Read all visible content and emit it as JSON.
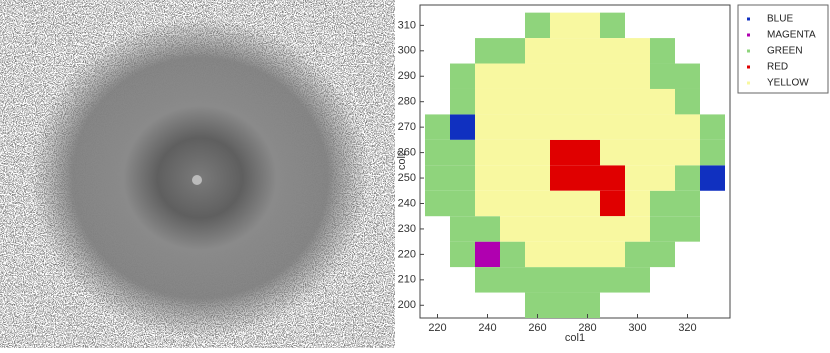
{
  "chart_data": {
    "type": "scatter",
    "xlabel": "col1",
    "ylabel": "col2",
    "xlim": [
      213,
      337
    ],
    "ylim": [
      195,
      318
    ],
    "xticks": [
      220,
      240,
      260,
      280,
      300,
      320
    ],
    "yticks": [
      200,
      210,
      220,
      230,
      240,
      250,
      260,
      270,
      280,
      290,
      300,
      310
    ],
    "series": [
      {
        "name": "BLUE",
        "color": "#1030c0",
        "x": [
          230,
          330
        ],
        "y": [
          270,
          250
        ]
      },
      {
        "name": "MAGENTA",
        "color": "#b000b0",
        "x": [
          240
        ],
        "y": [
          220
        ]
      },
      {
        "name": "GREEN",
        "color": "#8fd47c",
        "x": [
          260,
          290,
          240,
          250,
          310,
          230,
          310,
          320,
          230,
          320,
          220,
          330,
          220,
          230,
          330,
          220,
          230,
          320,
          220,
          230,
          310,
          320,
          230,
          240,
          310,
          320,
          230,
          250,
          300,
          310,
          240,
          250,
          260,
          270,
          280,
          290,
          300,
          260,
          270,
          280
        ],
        "y": [
          310,
          310,
          300,
          300,
          300,
          290,
          290,
          290,
          280,
          280,
          270,
          270,
          260,
          260,
          260,
          250,
          250,
          250,
          240,
          240,
          240,
          240,
          230,
          230,
          230,
          230,
          220,
          220,
          220,
          220,
          210,
          210,
          210,
          210,
          210,
          210,
          210,
          200,
          200,
          200
        ]
      },
      {
        "name": "RED",
        "color": "#e00000",
        "x": [
          270,
          280,
          270,
          280,
          290,
          290
        ],
        "y": [
          260,
          260,
          250,
          250,
          250,
          240
        ]
      },
      {
        "name": "YELLOW",
        "color": "#f8f8a0",
        "x": [
          270,
          280,
          260,
          270,
          280,
          290,
          300,
          240,
          250,
          260,
          270,
          280,
          290,
          300,
          240,
          250,
          260,
          270,
          280,
          290,
          300,
          310,
          240,
          250,
          260,
          270,
          280,
          290,
          300,
          310,
          320,
          240,
          250,
          260,
          290,
          300,
          310,
          320,
          240,
          250,
          260,
          300,
          310,
          240,
          250,
          260,
          270,
          280,
          300,
          250,
          260,
          270,
          280,
          290,
          300,
          260,
          270,
          280,
          290
        ],
        "y": [
          310,
          310,
          300,
          300,
          300,
          300,
          300,
          290,
          290,
          290,
          290,
          290,
          290,
          290,
          280,
          280,
          280,
          280,
          280,
          280,
          280,
          280,
          270,
          270,
          270,
          270,
          270,
          270,
          270,
          270,
          270,
          260,
          260,
          260,
          260,
          260,
          260,
          260,
          250,
          250,
          250,
          250,
          250,
          240,
          240,
          240,
          240,
          240,
          240,
          230,
          230,
          230,
          230,
          230,
          230,
          220,
          220,
          220,
          220
        ]
      }
    ]
  }
}
